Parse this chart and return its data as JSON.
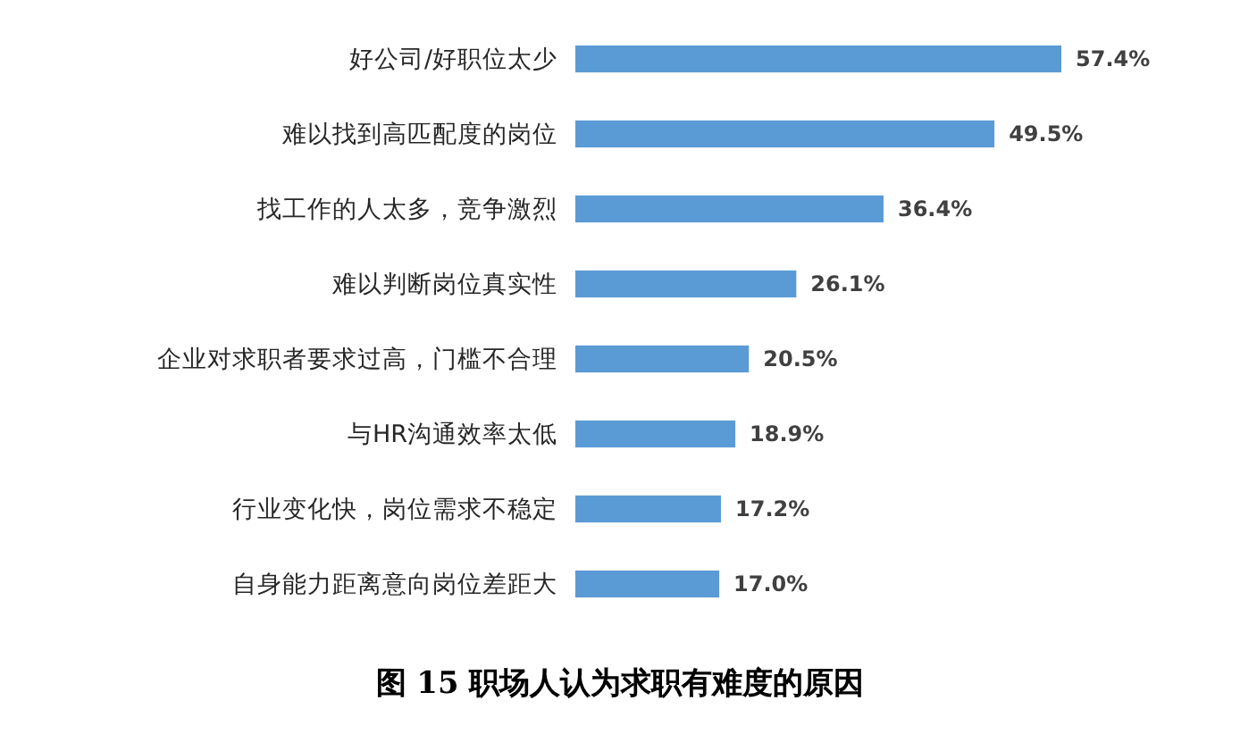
{
  "chart_data": {
    "type": "bar",
    "orientation": "horizontal",
    "title": "图 15  职场人认为求职有难度的原因",
    "categories": [
      "好公司/好职位太少",
      "难以找到高匹配度的岗位",
      "找工作的人太多，竞争激烈",
      "难以判断岗位真实性",
      "企业对求职者要求过高，门槛不合理",
      "与HR沟通效率太低",
      "行业变化快，岗位需求不稳定",
      "自身能力距离意向岗位差距大"
    ],
    "values": [
      57.4,
      49.5,
      36.4,
      26.1,
      20.5,
      18.9,
      17.2,
      17.0
    ],
    "value_labels": [
      "57.4%",
      "49.5%",
      "36.4%",
      "26.1%",
      "20.5%",
      "18.9%",
      "17.2%",
      "17.0%"
    ],
    "color": "#5b9bd5"
  }
}
